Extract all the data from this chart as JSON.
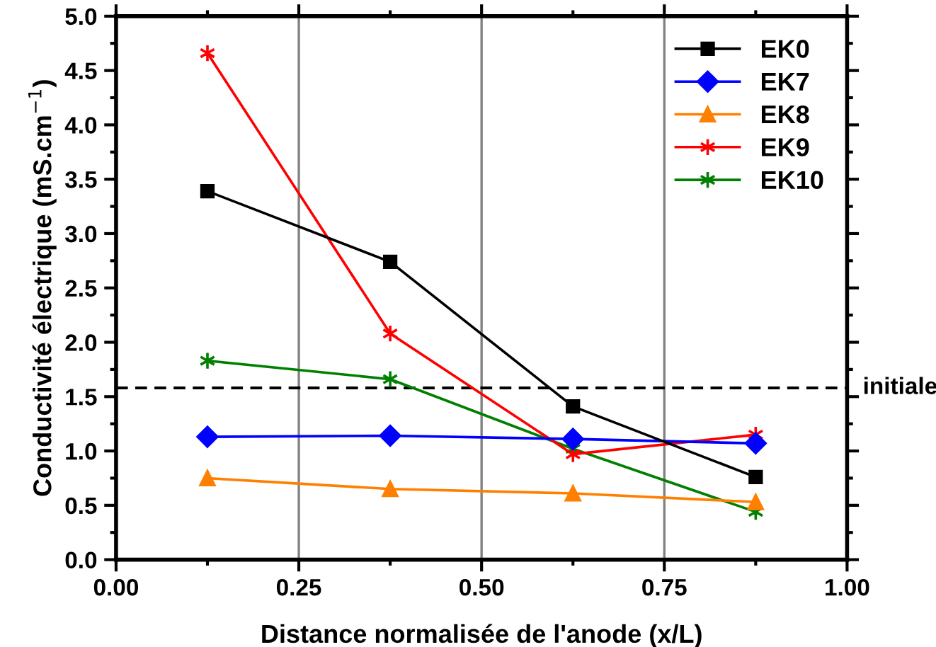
{
  "chart_data": {
    "type": "line",
    "xlabel": "Distance normalisée de l'anode (x/L)",
    "ylabel": "Conductivité électrique (mS.cm$^{−1}$)",
    "x": [
      0.125,
      0.375,
      0.625,
      0.875
    ],
    "series": [
      {
        "name": "EK0",
        "color": "#000000",
        "marker": "square",
        "values": [
          3.39,
          2.74,
          1.41,
          0.76
        ]
      },
      {
        "name": "EK7",
        "color": "#0000ff",
        "marker": "diamond",
        "values": [
          1.13,
          1.14,
          1.11,
          1.07
        ]
      },
      {
        "name": "EK8",
        "color": "#ff7f00",
        "marker": "triangle",
        "values": [
          0.75,
          0.65,
          0.61,
          0.53
        ]
      },
      {
        "name": "EK9",
        "color": "#ff0000",
        "marker": "cross",
        "values": [
          4.66,
          2.08,
          0.97,
          1.15
        ]
      },
      {
        "name": "EK10",
        "color": "#008000",
        "marker": "cross",
        "values": [
          1.83,
          1.66,
          1.02,
          0.44
        ]
      }
    ],
    "xlim": [
      0,
      1
    ],
    "xticks": [
      {
        "value": 0,
        "label": "0.00"
      },
      0.25,
      {
        "value": 0.5,
        "label": "0.50"
      },
      0.75,
      {
        "value": 1,
        "label": "1.00"
      }
    ],
    "ylim": [
      0,
      5
    ],
    "yticks": [
      {
        "value": 0,
        "label": "0.0"
      },
      0.5,
      {
        "value": 1,
        "label": "1.0"
      },
      1.5,
      {
        "value": 2,
        "label": "2.0"
      },
      2.5,
      {
        "value": 3,
        "label": "3.0"
      },
      3.5,
      {
        "value": 4,
        "label": "4.0"
      },
      4.5,
      {
        "value": 5,
        "label": "5.0"
      }
    ],
    "ref_lines": [
      {
        "axis": "y",
        "value": 1.58,
        "label": "initiale",
        "color": "#000000",
        "line_style": "dashed"
      }
    ],
    "grid": "x",
    "legend": "top right",
    "line_style": "solid"
  }
}
